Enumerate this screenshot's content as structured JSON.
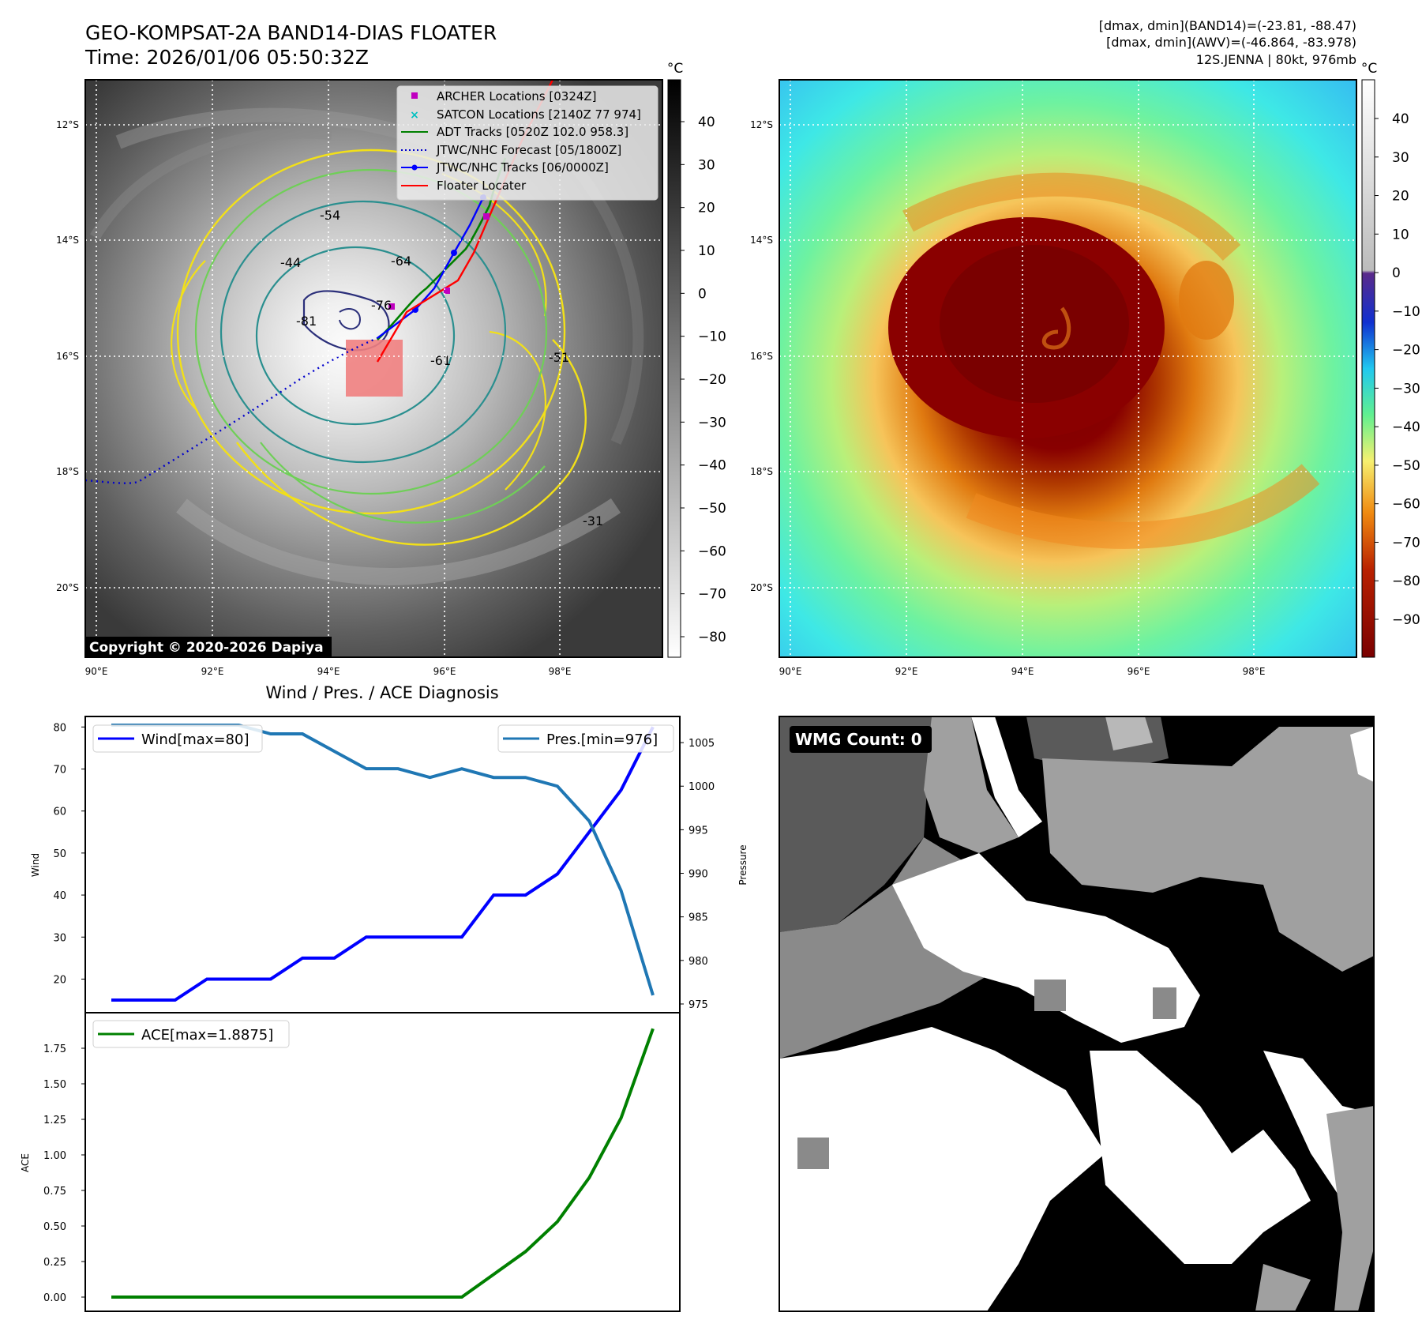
{
  "header": {
    "title_line1": "GEO-KOMPSAT-2A BAND14-DIAS FLOATER",
    "title_line2": "Time: 2026/01/06 05:50:32Z",
    "info_line1": "[dmax, dmin](BAND14)=(-23.81, -88.47)",
    "info_line2": "[dmax, dmin](AWV)=(-46.864, -83.978)",
    "info_line3": "12S.JENNA | 80kt, 976mb"
  },
  "colors": {
    "wind": "#0000ff",
    "pressure": "#1f77b4",
    "ace": "#008000",
    "adt": "#008000",
    "jtwc_forecast": "#0000cc",
    "floater": "#ff0000",
    "archer": "#c000c0",
    "satcon": "#00c0c0",
    "contour_yellow": "#f2e018",
    "contour_green": "#6fcf57",
    "contour_teal": "#2a8f8f",
    "contour_navy": "#2b2f7a"
  },
  "map_ir": {
    "lat_labels": [
      "12°S",
      "14°S",
      "16°S",
      "18°S",
      "20°S"
    ],
    "lon_labels": [
      "90°E",
      "92°E",
      "94°E",
      "96°E",
      "98°E"
    ],
    "colorbar_unit": "°C",
    "colorbar_ticks": [
      "40",
      "30",
      "20",
      "10",
      "0",
      "−10",
      "−20",
      "−30",
      "−40",
      "−50",
      "−60",
      "−70",
      "−80"
    ],
    "contour_labels": [
      "-54",
      "-44",
      "-64",
      "-76",
      "-81",
      "-61",
      "-51",
      "-31"
    ],
    "copyright": "Copyright © 2020-2026 Dapiya",
    "legend": [
      {
        "label": "ARCHER Locations [0324Z]",
        "symbol": "square"
      },
      {
        "label": "SATCON Locations [2140Z 77 974]",
        "symbol": "x"
      },
      {
        "label": "ADT Tracks [0520Z 102.0 958.3]",
        "symbol": "line"
      },
      {
        "label": "JTWC/NHC Forecast [05/1800Z]",
        "symbol": "dotted"
      },
      {
        "label": "JTWC/NHC Tracks [06/0000Z]",
        "symbol": "line-dot"
      },
      {
        "label": "Floater Locater",
        "symbol": "line"
      }
    ]
  },
  "map_awv": {
    "lat_labels": [
      "12°S",
      "14°S",
      "16°S",
      "18°S",
      "20°S"
    ],
    "lon_labels": [
      "90°E",
      "92°E",
      "94°E",
      "96°E",
      "98°E"
    ],
    "colorbar_unit": "°C",
    "colorbar_ticks": [
      "40",
      "30",
      "20",
      "10",
      "0",
      "−10",
      "−20",
      "−30",
      "−40",
      "−50",
      "−60",
      "−70",
      "−80",
      "−90"
    ]
  },
  "wmg": {
    "badge": "WMG Count: 0"
  },
  "chart_data": [
    {
      "type": "line",
      "title": "Wind / Pres. / ACE Diagnosis",
      "ylabel": "Wind",
      "ylabel_right": "Pressure",
      "ylim": [
        12,
        82.5
      ],
      "ylim_right": [
        974,
        1008
      ],
      "yticks": [
        20,
        30,
        40,
        50,
        60,
        70,
        80
      ],
      "yticks_right": [
        975,
        980,
        985,
        990,
        995,
        1000,
        1005
      ],
      "x": [
        0,
        1,
        2,
        3,
        4,
        5,
        6,
        7,
        8,
        9,
        10,
        11,
        12,
        13,
        14,
        15,
        16,
        17
      ],
      "series": [
        {
          "name": "Wind",
          "legend": "Wind[max=80]",
          "axis": "left",
          "values": [
            15,
            15,
            15,
            20,
            20,
            20,
            25,
            25,
            30,
            30,
            30,
            30,
            40,
            40,
            45,
            55,
            65,
            80
          ]
        },
        {
          "name": "Pres.",
          "legend": "Pres.[min=976]",
          "axis": "right",
          "values": [
            1007,
            1007,
            1007,
            1007,
            1007,
            1006,
            1006,
            1004,
            1002,
            1002,
            1001,
            1002,
            1001,
            1001,
            1000,
            996,
            988,
            976
          ]
        }
      ]
    },
    {
      "type": "line",
      "ylabel": "ACE",
      "ylim": [
        -0.1,
        2.0
      ],
      "yticks": [
        "0.00",
        "0.25",
        "0.50",
        "0.75",
        "1.00",
        "1.25",
        "1.50",
        "1.75"
      ],
      "x": [
        0,
        1,
        2,
        3,
        4,
        5,
        6,
        7,
        8,
        9,
        10,
        11,
        12,
        13,
        14,
        15,
        16,
        17
      ],
      "series": [
        {
          "name": "ACE",
          "legend": "ACE[max=1.8875]",
          "values": [
            0,
            0,
            0,
            0,
            0,
            0,
            0,
            0,
            0,
            0,
            0,
            0,
            0.16,
            0.32,
            0.53,
            0.84,
            1.26,
            1.8875
          ]
        }
      ]
    }
  ]
}
